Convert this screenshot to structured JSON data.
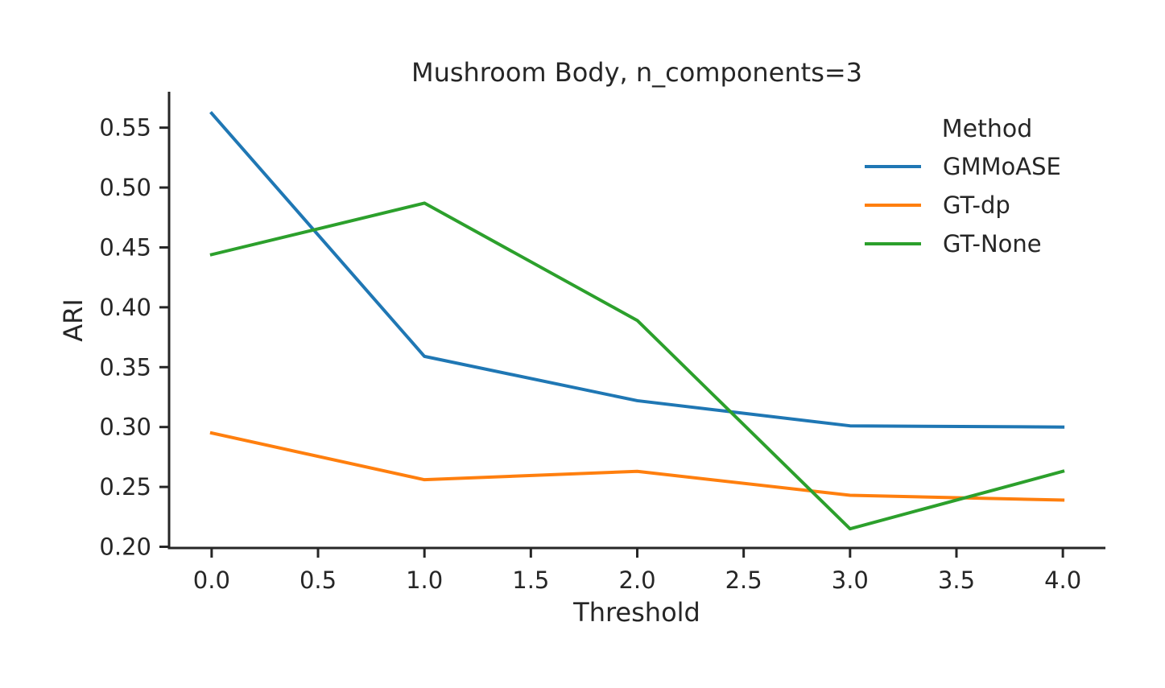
{
  "chart_data": {
    "type": "line",
    "title": "Mushroom Body, n_components=3",
    "xlabel": "Threshold",
    "ylabel": "ARI",
    "x": [
      0.0,
      1.0,
      2.0,
      3.0,
      4.0
    ],
    "xlim": [
      -0.2,
      4.2
    ],
    "ylim": [
      0.199,
      0.58
    ],
    "xticks": [
      0.0,
      0.5,
      1.0,
      1.5,
      2.0,
      2.5,
      3.0,
      3.5,
      4.0
    ],
    "xtick_labels": [
      "0.0",
      "0.5",
      "1.0",
      "1.5",
      "2.0",
      "2.5",
      "3.0",
      "3.5",
      "4.0"
    ],
    "yticks": [
      0.2,
      0.25,
      0.3,
      0.35,
      0.4,
      0.45,
      0.5,
      0.55
    ],
    "ytick_labels": [
      "0.20",
      "0.25",
      "0.30",
      "0.35",
      "0.40",
      "0.45",
      "0.50",
      "0.55"
    ],
    "grid": false,
    "legend": {
      "title": "Method",
      "placement": "top-right"
    },
    "series": [
      {
        "name": "GMMoASE",
        "color": "#1f77b4",
        "values": [
          0.562,
          0.359,
          0.322,
          0.301,
          0.3
        ]
      },
      {
        "name": "GT-dp",
        "color": "#ff7f0e",
        "values": [
          0.295,
          0.256,
          0.263,
          0.243,
          0.239
        ]
      },
      {
        "name": "GT-None",
        "color": "#2ca02c",
        "values": [
          0.444,
          0.487,
          0.389,
          0.215,
          0.263
        ]
      }
    ]
  }
}
